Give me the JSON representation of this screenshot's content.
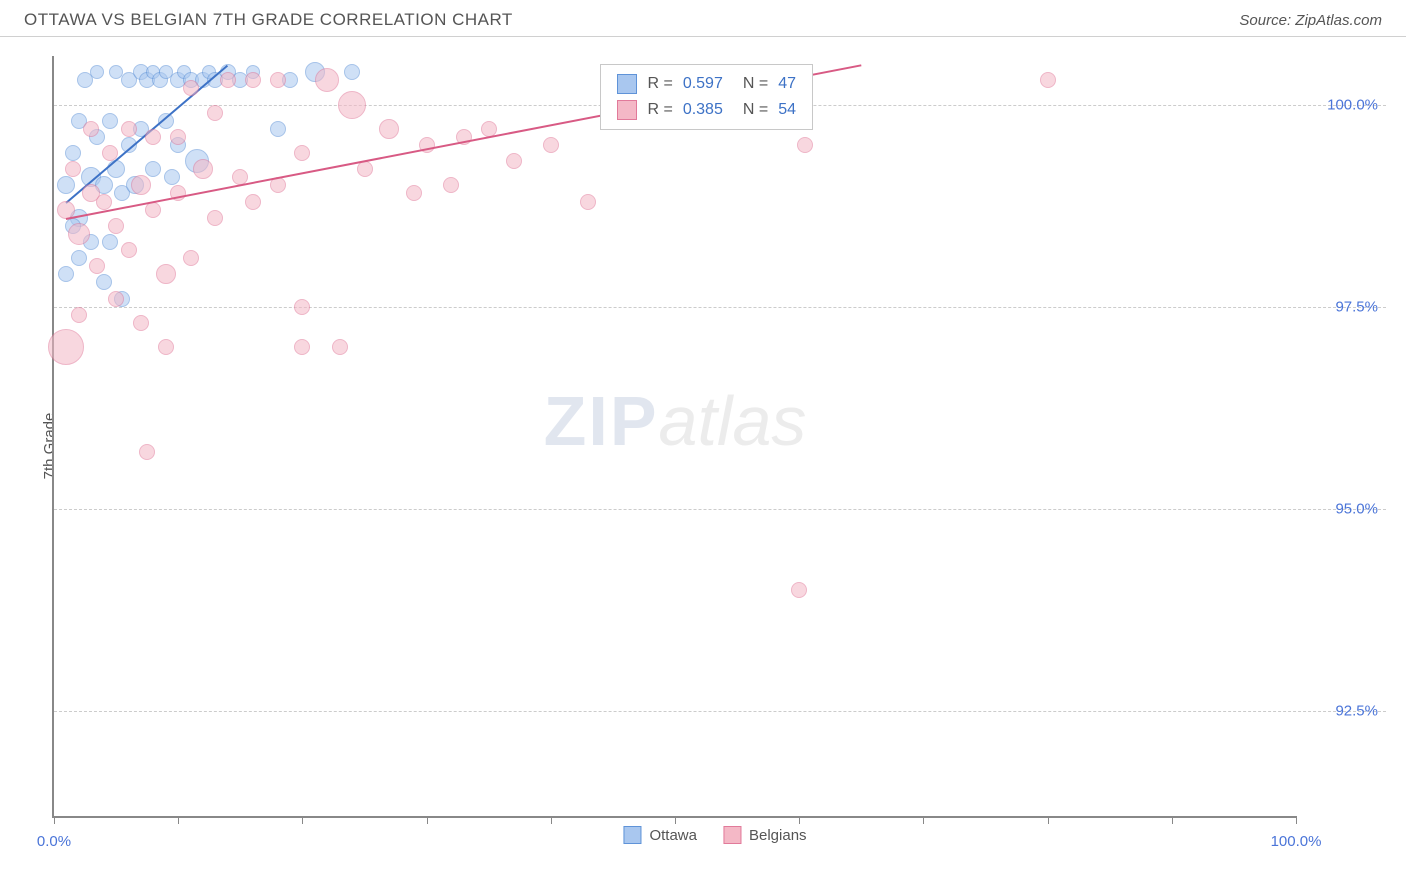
{
  "header": {
    "title": "OTTAWA VS BELGIAN 7TH GRADE CORRELATION CHART",
    "source_prefix": "Source: ",
    "source_name": "ZipAtlas.com"
  },
  "chart": {
    "type": "scatter",
    "ylabel": "7th Grade",
    "background_color": "#ffffff",
    "grid_color": "#cccccc",
    "axis_color": "#888888",
    "xlim": [
      0,
      100
    ],
    "ylim": [
      91.2,
      100.6
    ],
    "x_ticks": [
      0,
      10,
      20,
      30,
      40,
      50,
      60,
      70,
      80,
      90,
      100
    ],
    "x_tick_labels": {
      "0": "0.0%",
      "100": "100.0%"
    },
    "y_gridlines": [
      100.0,
      97.5,
      95.0,
      92.5
    ],
    "y_tick_labels": {
      "100.0": "100.0%",
      "97.5": "97.5%",
      "95.0": "95.0%",
      "92.5": "92.5%"
    },
    "series": [
      {
        "name": "Ottawa",
        "fill": "#a9c7ef",
        "stroke": "#5f93d8",
        "fill_opacity": 0.55,
        "R": 0.597,
        "N": 47,
        "trend": {
          "x1": 1,
          "y1": 98.8,
          "x2": 14,
          "y2": 100.5,
          "color": "#3d72c6",
          "width": 2
        },
        "points": [
          {
            "x": 1,
            "y": 99.0,
            "r": 9
          },
          {
            "x": 1.5,
            "y": 99.4,
            "r": 8
          },
          {
            "x": 2,
            "y": 98.6,
            "r": 9
          },
          {
            "x": 2,
            "y": 99.8,
            "r": 8
          },
          {
            "x": 2.5,
            "y": 100.3,
            "r": 8
          },
          {
            "x": 3,
            "y": 99.1,
            "r": 10
          },
          {
            "x": 3,
            "y": 98.3,
            "r": 8
          },
          {
            "x": 3.5,
            "y": 99.6,
            "r": 8
          },
          {
            "x": 3.5,
            "y": 100.4,
            "r": 7
          },
          {
            "x": 4,
            "y": 99.0,
            "r": 9
          },
          {
            "x": 4,
            "y": 97.8,
            "r": 8
          },
          {
            "x": 4.5,
            "y": 99.8,
            "r": 8
          },
          {
            "x": 5,
            "y": 100.4,
            "r": 7
          },
          {
            "x": 5,
            "y": 99.2,
            "r": 9
          },
          {
            "x": 5.5,
            "y": 98.9,
            "r": 8
          },
          {
            "x": 5.5,
            "y": 97.6,
            "r": 8
          },
          {
            "x": 6,
            "y": 99.5,
            "r": 8
          },
          {
            "x": 6,
            "y": 100.3,
            "r": 8
          },
          {
            "x": 6.5,
            "y": 99.0,
            "r": 9
          },
          {
            "x": 7,
            "y": 100.4,
            "r": 8
          },
          {
            "x": 7,
            "y": 99.7,
            "r": 8
          },
          {
            "x": 7.5,
            "y": 100.3,
            "r": 8
          },
          {
            "x": 8,
            "y": 99.2,
            "r": 8
          },
          {
            "x": 8,
            "y": 100.4,
            "r": 7
          },
          {
            "x": 8.5,
            "y": 100.3,
            "r": 8
          },
          {
            "x": 9,
            "y": 99.8,
            "r": 8
          },
          {
            "x": 9,
            "y": 100.4,
            "r": 7
          },
          {
            "x": 9.5,
            "y": 99.1,
            "r": 8
          },
          {
            "x": 10,
            "y": 100.3,
            "r": 8
          },
          {
            "x": 10,
            "y": 99.5,
            "r": 8
          },
          {
            "x": 10.5,
            "y": 100.4,
            "r": 7
          },
          {
            "x": 11,
            "y": 100.3,
            "r": 8
          },
          {
            "x": 11.5,
            "y": 99.3,
            "r": 12
          },
          {
            "x": 12,
            "y": 100.3,
            "r": 8
          },
          {
            "x": 12.5,
            "y": 100.4,
            "r": 7
          },
          {
            "x": 13,
            "y": 100.3,
            "r": 8
          },
          {
            "x": 14,
            "y": 100.4,
            "r": 8
          },
          {
            "x": 15,
            "y": 100.3,
            "r": 8
          },
          {
            "x": 16,
            "y": 100.4,
            "r": 7
          },
          {
            "x": 18,
            "y": 99.7,
            "r": 8
          },
          {
            "x": 19,
            "y": 100.3,
            "r": 8
          },
          {
            "x": 21,
            "y": 100.4,
            "r": 10
          },
          {
            "x": 24,
            "y": 100.4,
            "r": 8
          },
          {
            "x": 1,
            "y": 97.9,
            "r": 8
          },
          {
            "x": 2,
            "y": 98.1,
            "r": 8
          },
          {
            "x": 1.5,
            "y": 98.5,
            "r": 8
          },
          {
            "x": 4.5,
            "y": 98.3,
            "r": 8
          }
        ]
      },
      {
        "name": "Belgians",
        "fill": "#f4b8c6",
        "stroke": "#e17a9a",
        "fill_opacity": 0.55,
        "R": 0.385,
        "N": 54,
        "trend": {
          "x1": 1,
          "y1": 98.6,
          "x2": 65,
          "y2": 100.5,
          "color": "#d85a84",
          "width": 2
        },
        "points": [
          {
            "x": 1,
            "y": 98.7,
            "r": 9
          },
          {
            "x": 1,
            "y": 97.0,
            "r": 18
          },
          {
            "x": 1.5,
            "y": 99.2,
            "r": 8
          },
          {
            "x": 2,
            "y": 98.4,
            "r": 11
          },
          {
            "x": 2,
            "y": 97.4,
            "r": 8
          },
          {
            "x": 3,
            "y": 98.9,
            "r": 9
          },
          {
            "x": 3,
            "y": 99.7,
            "r": 8
          },
          {
            "x": 3.5,
            "y": 98.0,
            "r": 8
          },
          {
            "x": 4,
            "y": 98.8,
            "r": 8
          },
          {
            "x": 4.5,
            "y": 99.4,
            "r": 8
          },
          {
            "x": 5,
            "y": 97.6,
            "r": 8
          },
          {
            "x": 5,
            "y": 98.5,
            "r": 8
          },
          {
            "x": 6,
            "y": 99.7,
            "r": 8
          },
          {
            "x": 6,
            "y": 98.2,
            "r": 8
          },
          {
            "x": 7,
            "y": 99.0,
            "r": 10
          },
          {
            "x": 7,
            "y": 97.3,
            "r": 8
          },
          {
            "x": 7.5,
            "y": 95.7,
            "r": 8
          },
          {
            "x": 8,
            "y": 98.7,
            "r": 8
          },
          {
            "x": 8,
            "y": 99.6,
            "r": 8
          },
          {
            "x": 9,
            "y": 97.9,
            "r": 10
          },
          {
            "x": 9,
            "y": 97.0,
            "r": 8
          },
          {
            "x": 10,
            "y": 98.9,
            "r": 8
          },
          {
            "x": 10,
            "y": 99.6,
            "r": 8
          },
          {
            "x": 11,
            "y": 100.2,
            "r": 8
          },
          {
            "x": 11,
            "y": 98.1,
            "r": 8
          },
          {
            "x": 12,
            "y": 99.2,
            "r": 10
          },
          {
            "x": 13,
            "y": 99.9,
            "r": 8
          },
          {
            "x": 13,
            "y": 98.6,
            "r": 8
          },
          {
            "x": 14,
            "y": 100.3,
            "r": 8
          },
          {
            "x": 15,
            "y": 99.1,
            "r": 8
          },
          {
            "x": 16,
            "y": 100.3,
            "r": 8
          },
          {
            "x": 16,
            "y": 98.8,
            "r": 8
          },
          {
            "x": 18,
            "y": 100.3,
            "r": 8
          },
          {
            "x": 18,
            "y": 99.0,
            "r": 8
          },
          {
            "x": 20,
            "y": 99.4,
            "r": 8
          },
          {
            "x": 20,
            "y": 97.5,
            "r": 8
          },
          {
            "x": 20,
            "y": 97.0,
            "r": 8
          },
          {
            "x": 22,
            "y": 100.3,
            "r": 12
          },
          {
            "x": 23,
            "y": 97.0,
            "r": 8
          },
          {
            "x": 24,
            "y": 100.0,
            "r": 14
          },
          {
            "x": 25,
            "y": 99.2,
            "r": 8
          },
          {
            "x": 27,
            "y": 99.7,
            "r": 10
          },
          {
            "x": 29,
            "y": 98.9,
            "r": 8
          },
          {
            "x": 30,
            "y": 99.5,
            "r": 8
          },
          {
            "x": 32,
            "y": 99.0,
            "r": 8
          },
          {
            "x": 33,
            "y": 99.6,
            "r": 8
          },
          {
            "x": 35,
            "y": 99.7,
            "r": 8
          },
          {
            "x": 37,
            "y": 99.3,
            "r": 8
          },
          {
            "x": 40,
            "y": 99.5,
            "r": 8
          },
          {
            "x": 43,
            "y": 98.8,
            "r": 8
          },
          {
            "x": 45,
            "y": 100.2,
            "r": 8
          },
          {
            "x": 60,
            "y": 94.0,
            "r": 8
          },
          {
            "x": 60.5,
            "y": 99.5,
            "r": 8
          },
          {
            "x": 80,
            "y": 100.3,
            "r": 8
          }
        ]
      }
    ],
    "legend_top": {
      "R_label": "R =",
      "N_label": "N =",
      "value_color": "#3d72c6",
      "text_color": "#555555"
    },
    "legend_bottom_labels": [
      "Ottawa",
      "Belgians"
    ],
    "watermark": {
      "zip": "ZIP",
      "atlas": "atlas"
    }
  }
}
